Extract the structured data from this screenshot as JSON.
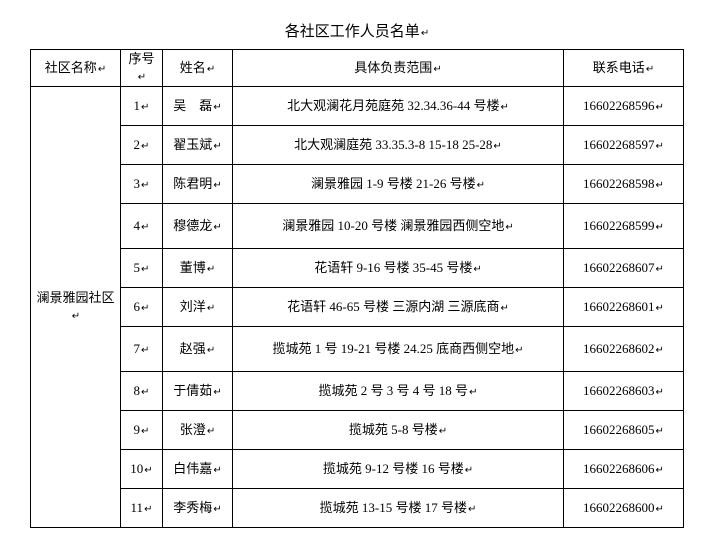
{
  "title": "各社区工作人员名单",
  "para_mark": "↵",
  "columns": {
    "community": "社区名称",
    "seq": "序号",
    "name": "姓名",
    "scope": "具体负责范围",
    "phone": "联系电话"
  },
  "community_name": "澜景雅园社区",
  "rows": [
    {
      "seq": "1",
      "name": "吴　磊",
      "scope": "北大观澜花月苑庭苑 32.34.36-44 号楼",
      "phone": "16602268596"
    },
    {
      "seq": "2",
      "name": "翟玉斌",
      "scope": "北大观澜庭苑 33.35.3-8 15-18 25-28",
      "phone": "16602268597"
    },
    {
      "seq": "3",
      "name": "陈君明",
      "scope": "澜景雅园 1-9 号楼 21-26 号楼",
      "phone": "16602268598"
    },
    {
      "seq": "4",
      "name": "穆德龙",
      "scope": "澜景雅园 10-20 号楼 澜景雅园西侧空地",
      "phone": "16602268599"
    },
    {
      "seq": "5",
      "name": "董博",
      "scope": "花语轩 9-16 号楼 35-45 号楼",
      "phone": "16602268607"
    },
    {
      "seq": "6",
      "name": "刘洋",
      "scope": "花语轩 46-65 号楼 三源内湖 三源底商",
      "phone": "16602268601"
    },
    {
      "seq": "7",
      "name": "赵强",
      "scope": "揽城苑 1 号 19-21 号楼 24.25 底商西侧空地",
      "phone": "16602268602"
    },
    {
      "seq": "8",
      "name": "于倩茹",
      "scope": "揽城苑 2 号 3 号 4 号 18 号",
      "phone": "16602268603"
    },
    {
      "seq": "9",
      "name": "张澄",
      "scope": "揽城苑 5-8 号楼",
      "phone": "16602268605"
    },
    {
      "seq": "10",
      "name": "白伟嘉",
      "scope": "揽城苑 9-12 号楼 16 号楼",
      "phone": "16602268606"
    },
    {
      "seq": "11",
      "name": "李秀梅",
      "scope": "揽城苑 13-15 号楼 17 号楼",
      "phone": "16602268600"
    }
  ],
  "tall_rows": [
    3,
    6
  ]
}
